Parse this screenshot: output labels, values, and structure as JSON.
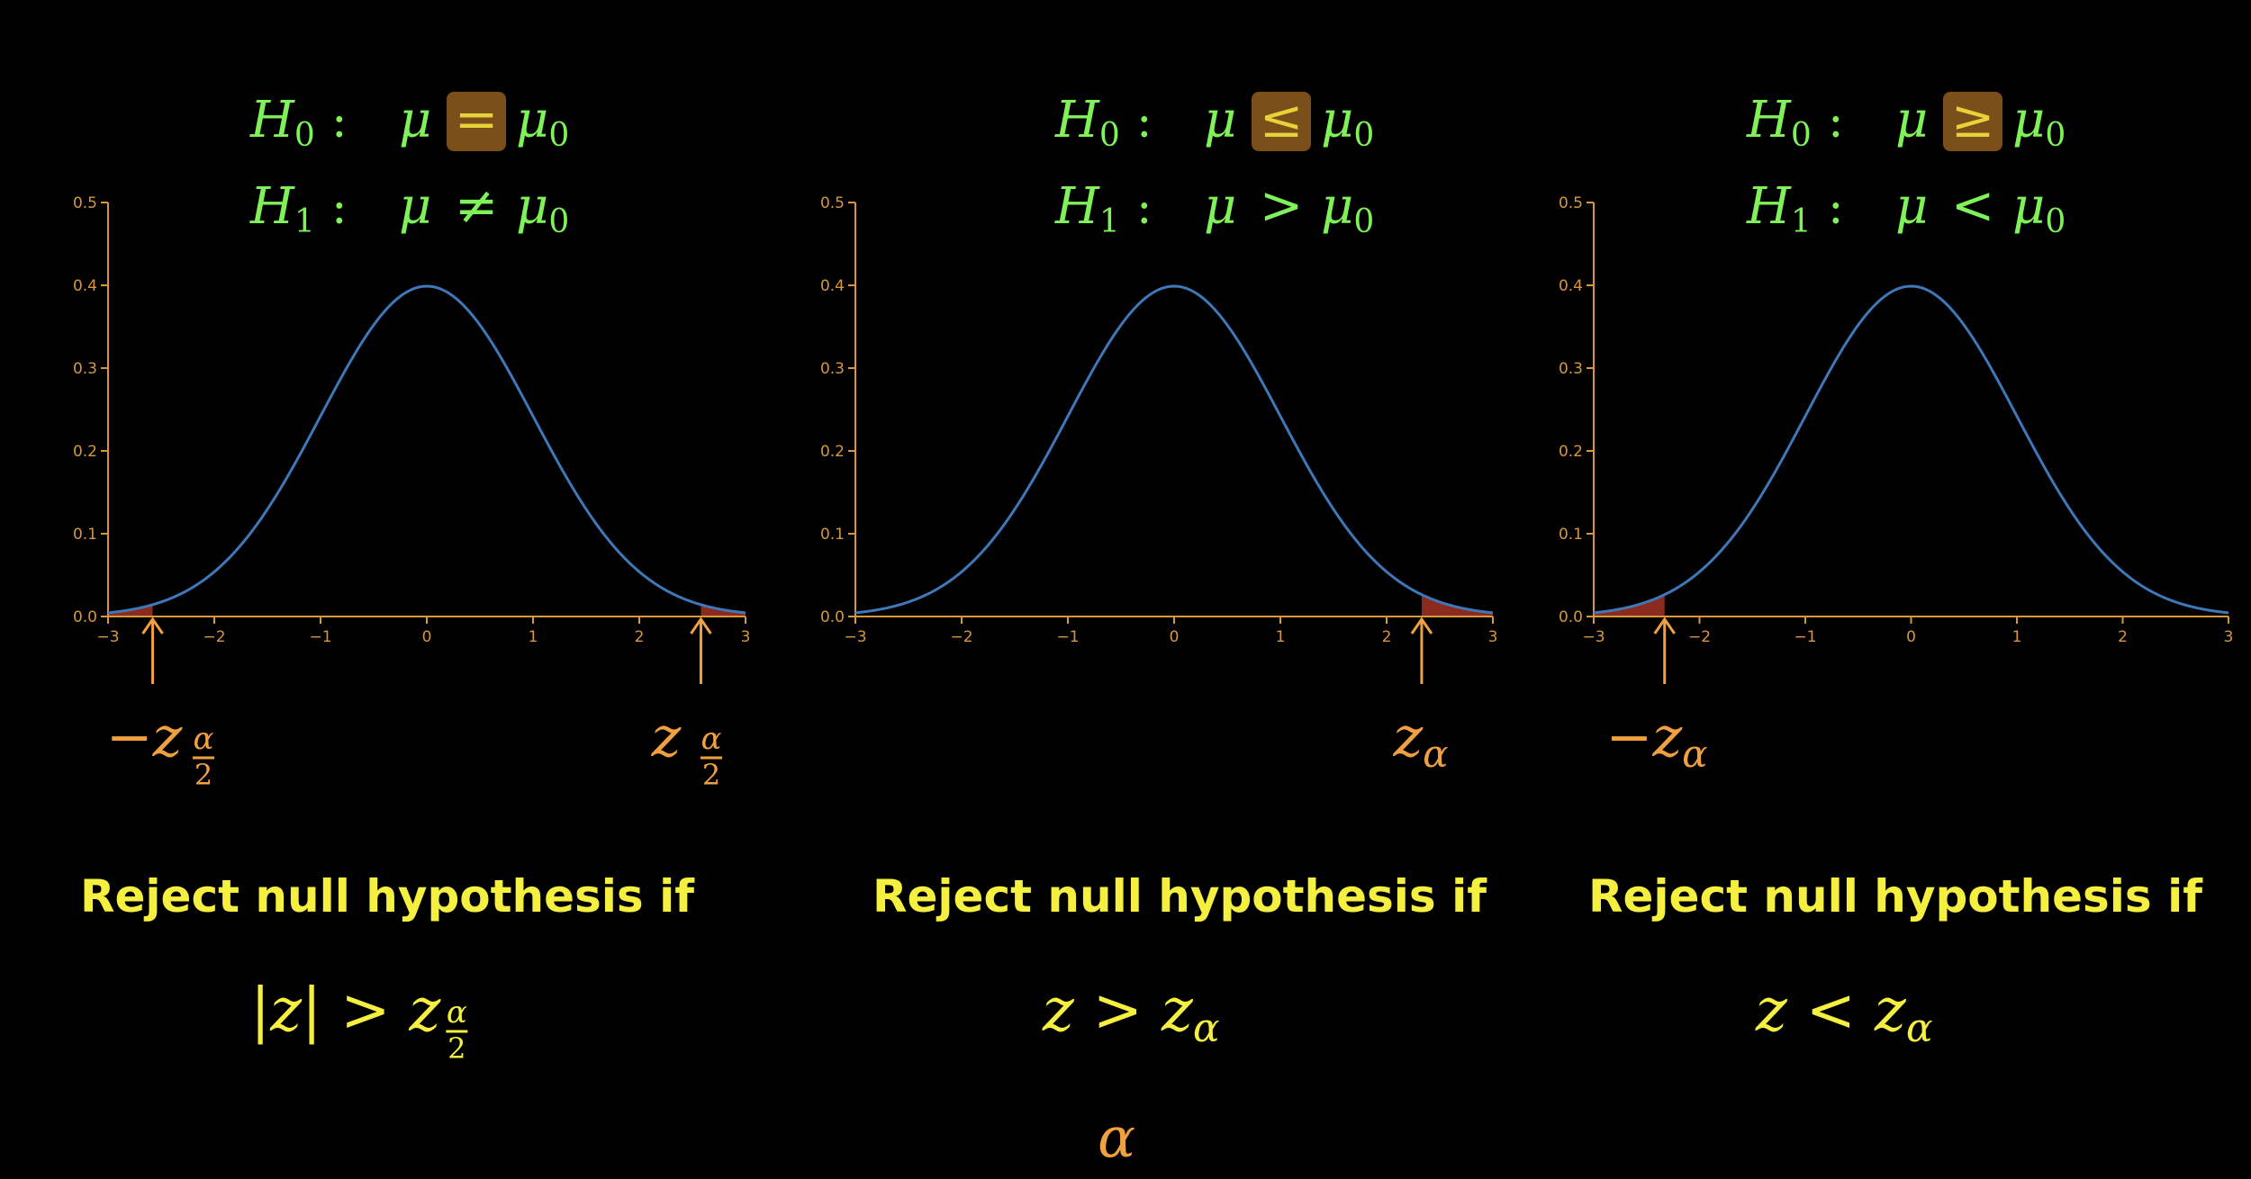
{
  "colors": {
    "background": "#000000",
    "axis": "#d9963a",
    "curve": "#3f78b8",
    "rejection_fill": "#8b2a1f",
    "hypothesis_text": "#7ff25a",
    "highlight_box": "#7a4f1a",
    "highlight_symbol": "#e8d23a",
    "critical_text": "#f0a040",
    "condition_text": "#f5f040"
  },
  "chart_data": [
    {
      "type": "line",
      "name": "two-tailed",
      "xlim": [
        -3,
        3
      ],
      "ylim": [
        0,
        0.5
      ],
      "xticks": [
        -3,
        -2,
        -1,
        0,
        1,
        2,
        3
      ],
      "xtick_labels": [
        "−3",
        "−2",
        "−1",
        "0",
        "1",
        "2",
        "3"
      ],
      "yticks": [
        0.0,
        0.1,
        0.2,
        0.3,
        0.4,
        0.5
      ],
      "ytick_labels": [
        "0.0",
        "0.1",
        "0.2",
        "0.3",
        "0.4",
        "0.5"
      ],
      "curve": "standard normal density",
      "shaded": [
        [
          -3,
          -2.58
        ],
        [
          2.58,
          3
        ]
      ],
      "arrows_at": [
        -2.58,
        2.58
      ],
      "hypotheses": {
        "h0_label": "H",
        "h0_sub": "0",
        "h1_label": "H",
        "h1_sub": "1",
        "colon": ":",
        "mu": "μ",
        "mu0": "μ",
        "mu0_sub": "0",
        "h0_relation": "=",
        "h1_relation": "≠"
      },
      "critical_labels": [
        {
          "sign": "−",
          "z": "z",
          "num": "α",
          "den": "2"
        },
        {
          "sign": "",
          "z": "z",
          "num": "α",
          "den": "2"
        }
      ],
      "reject_text": "Reject null hypothesis if",
      "condition": {
        "abs_open": "|",
        "var": "z",
        "abs_close": "|",
        "rel": ">",
        "z": "z",
        "num": "α",
        "den": "2"
      }
    },
    {
      "type": "line",
      "name": "right-tailed",
      "xlim": [
        -3,
        3
      ],
      "ylim": [
        0,
        0.5
      ],
      "xticks": [
        -3,
        -2,
        -1,
        0,
        1,
        2,
        3
      ],
      "xtick_labels": [
        "−3",
        "−2",
        "−1",
        "0",
        "1",
        "2",
        "3"
      ],
      "yticks": [
        0.0,
        0.1,
        0.2,
        0.3,
        0.4,
        0.5
      ],
      "ytick_labels": [
        "0.0",
        "0.1",
        "0.2",
        "0.3",
        "0.4",
        "0.5"
      ],
      "curve": "standard normal density",
      "shaded": [
        [
          2.33,
          3
        ]
      ],
      "arrows_at": [
        2.33
      ],
      "hypotheses": {
        "h0_label": "H",
        "h0_sub": "0",
        "h1_label": "H",
        "h1_sub": "1",
        "colon": ":",
        "mu": "μ",
        "mu0": "μ",
        "mu0_sub": "0",
        "h0_relation": "≤",
        "h1_relation": ">"
      },
      "critical_labels": [
        {
          "sign": "",
          "z": "z",
          "sub": "α"
        }
      ],
      "reject_text": "Reject null hypothesis if",
      "condition": {
        "var": "z",
        "rel": ">",
        "z": "z",
        "sub": "α"
      }
    },
    {
      "type": "line",
      "name": "left-tailed",
      "xlim": [
        -3,
        3
      ],
      "ylim": [
        0,
        0.5
      ],
      "xticks": [
        -3,
        -2,
        -1,
        0,
        1,
        2,
        3
      ],
      "xtick_labels": [
        "−3",
        "−2",
        "−1",
        "0",
        "1",
        "2",
        "3"
      ],
      "yticks": [
        0.0,
        0.1,
        0.2,
        0.3,
        0.4,
        0.5
      ],
      "ytick_labels": [
        "0.0",
        "0.1",
        "0.2",
        "0.3",
        "0.4",
        "0.5"
      ],
      "curve": "standard normal density",
      "shaded": [
        [
          -3,
          -2.33
        ]
      ],
      "arrows_at": [
        -2.33
      ],
      "hypotheses": {
        "h0_label": "H",
        "h0_sub": "0",
        "h1_label": "H",
        "h1_sub": "1",
        "colon": ":",
        "mu": "μ",
        "mu0": "μ",
        "mu0_sub": "0",
        "h0_relation": "≥",
        "h1_relation": "<"
      },
      "critical_labels": [
        {
          "sign": "−",
          "z": "z",
          "sub": "α"
        }
      ],
      "reject_text": "Reject null hypothesis if",
      "condition": {
        "var": "z",
        "rel": "<",
        "z": "z",
        "sub": "α"
      }
    }
  ],
  "footer_symbol": "α"
}
